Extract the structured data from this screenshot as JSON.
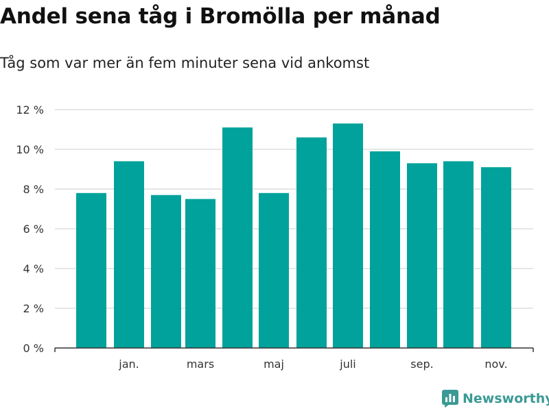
{
  "colors": {
    "bar": "#00a29b",
    "grid": "#dddddd",
    "axis": "#333333",
    "text": "#111111",
    "brand": "#3a9a94"
  },
  "brand": {
    "name": "Newsworthy",
    "icon": "newsworthy-logo-icon"
  },
  "chart_data": {
    "type": "bar",
    "title": "Andel sena tåg i Bromölla per månad",
    "subtitle": "Tåg som var mer än fem minuter sena vid ankomst",
    "xlabel": "",
    "ylabel": "",
    "ylim": [
      0,
      12
    ],
    "y_ticks": [
      0,
      2,
      4,
      6,
      8,
      10,
      12
    ],
    "y_tick_labels": [
      "0 %",
      "2 %",
      "4 %",
      "6 %",
      "8 %",
      "10 %",
      "12 %"
    ],
    "grid": true,
    "categories": [
      "",
      "jan.",
      "",
      "mars",
      "",
      "maj",
      "",
      "juli",
      "",
      "sep.",
      "",
      "nov."
    ],
    "values": [
      7.8,
      9.4,
      7.7,
      7.5,
      11.1,
      7.8,
      10.6,
      11.3,
      9.9,
      9.3,
      9.4,
      9.1
    ]
  }
}
